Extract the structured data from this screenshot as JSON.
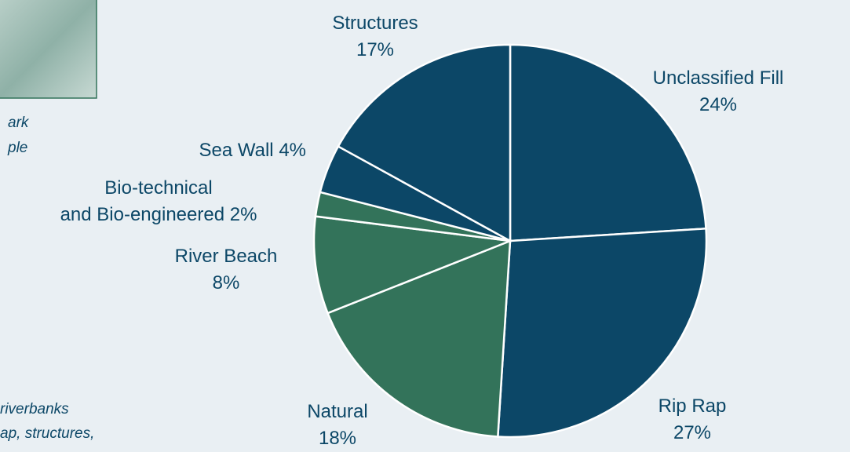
{
  "chart_data": {
    "type": "pie",
    "categories": [
      "Unclassified Fill",
      "Rip Rap",
      "Natural",
      "River Beach",
      "Bio-technical\nand Bio-engineered",
      "Sea Wall",
      "Structures"
    ],
    "values": [
      24,
      27,
      18,
      8,
      2,
      4,
      17
    ],
    "value_labels": [
      "24%",
      "27%",
      "18%",
      "8%",
      "2%",
      "4%",
      "17%"
    ],
    "colors": [
      "#0c4767",
      "#0c4767",
      "#33735a",
      "#33735a",
      "#33735a",
      "#0c4767",
      "#0c4767"
    ]
  },
  "photo_caption": [
    "ark",
    "ple"
  ],
  "figure_caption": [
    "riverbanks",
    "ap, structures,"
  ]
}
